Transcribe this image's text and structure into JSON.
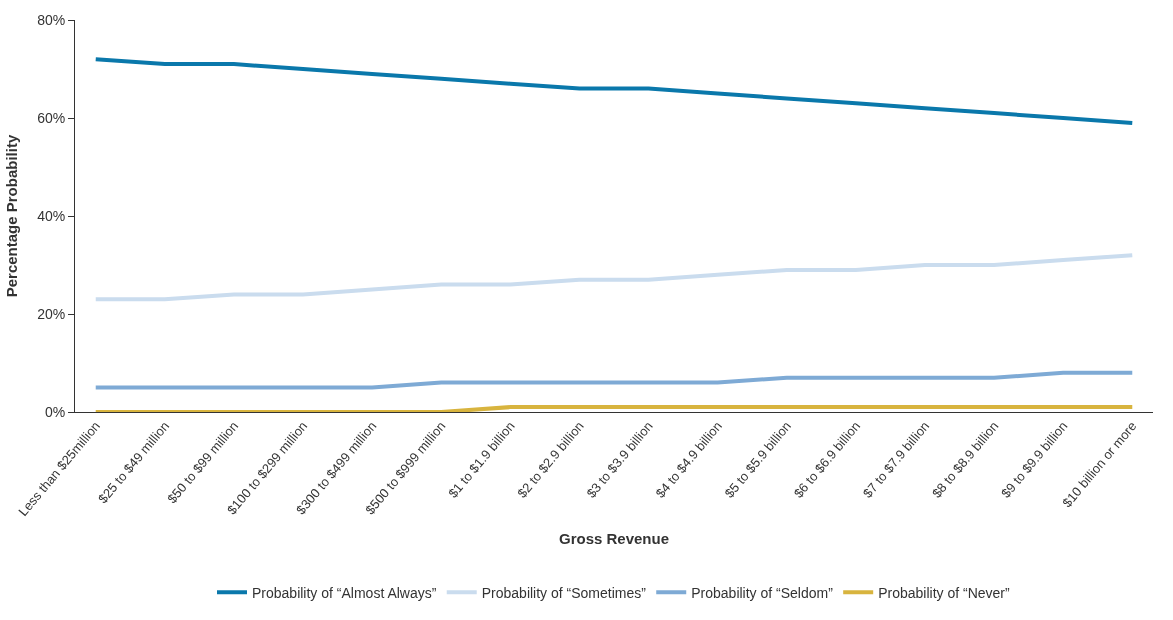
{
  "chart_data": {
    "type": "line",
    "xlabel": "Gross Revenue",
    "ylabel": "Percentage Probability",
    "categories": [
      "Less than $25million",
      "$25 to $49 million",
      "$50 to $99 million",
      "$100 to $299 million",
      "$300 to $499 million",
      "$500 to $999 million",
      "$1 to $1.9 billion",
      "$2 to $2.9 billion",
      "$3 to $3.9 billion",
      "$4 to $4.9 billion",
      "$5 to $5.9 billion",
      "$6 to $6.9 billion",
      "$7 to $7.9 billion",
      "$8 to $8.9 billion",
      "$9 to $9.9 billion",
      "$10 billion or more"
    ],
    "series": [
      {
        "name": "Probability of “Almost Always”",
        "color": "#0a78ab",
        "values": [
          72,
          71,
          71,
          70,
          69,
          68,
          67,
          66,
          66,
          65,
          64,
          63,
          62,
          61,
          60,
          59
        ]
      },
      {
        "name": "Probability of “Sometimes”",
        "color": "#cadcee",
        "values": [
          23,
          23,
          24,
          24,
          25,
          26,
          26,
          27,
          27,
          28,
          29,
          29,
          30,
          30,
          31,
          32
        ]
      },
      {
        "name": "Probability of “Seldom”",
        "color": "#7eaad5",
        "values": [
          5,
          5,
          5,
          5,
          5,
          6,
          6,
          6,
          6,
          6,
          7,
          7,
          7,
          7,
          8,
          8
        ]
      },
      {
        "name": "Probability of “Never”",
        "color": "#d8b43e",
        "values": [
          0,
          0,
          0,
          0,
          0,
          0,
          1,
          1,
          1,
          1,
          1,
          1,
          1,
          1,
          1,
          1
        ]
      }
    ],
    "ylim": [
      0,
      80
    ],
    "yticks": [
      {
        "value": 0,
        "label": "0%"
      },
      {
        "value": 20,
        "label": "20%"
      },
      {
        "value": 40,
        "label": "40%"
      },
      {
        "value": 60,
        "label": "60%"
      },
      {
        "value": 80,
        "label": "80%"
      }
    ],
    "legend": "bottom",
    "marker": "none",
    "line_style": "solid"
  }
}
